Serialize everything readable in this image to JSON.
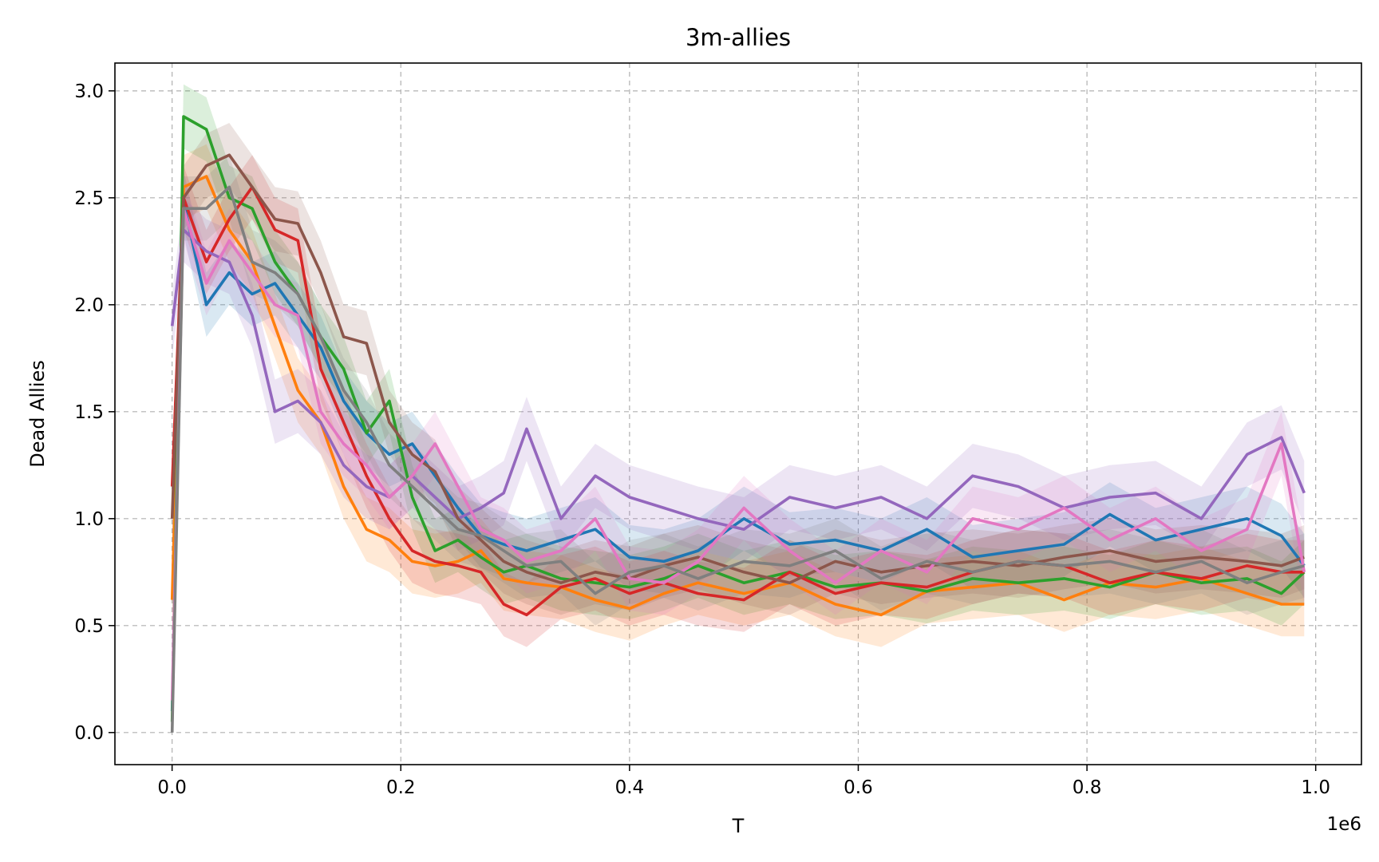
{
  "chart_data": {
    "type": "line",
    "title": "3m-allies",
    "xlabel": "T",
    "ylabel": "Dead Allies",
    "x_offset_text": "1e6",
    "xlim": [
      -0.05,
      1.04
    ],
    "ylim": [
      -0.15,
      3.13
    ],
    "xticks": [
      0.0,
      0.2,
      0.4,
      0.6,
      0.8,
      1.0
    ],
    "xtick_labels": [
      "0.0",
      "0.2",
      "0.4",
      "0.6",
      "0.8",
      "1.0"
    ],
    "yticks": [
      0.0,
      0.5,
      1.0,
      1.5,
      2.0,
      2.5,
      3.0
    ],
    "ytick_labels": [
      "0.0",
      "0.5",
      "1.0",
      "1.5",
      "2.0",
      "2.5",
      "3.0"
    ],
    "grid": true,
    "legend": "none",
    "shaded_band": "approximately ±0.15 around each line",
    "x": [
      0.0,
      0.01,
      0.03,
      0.05,
      0.07,
      0.09,
      0.11,
      0.13,
      0.15,
      0.17,
      0.19,
      0.21,
      0.23,
      0.25,
      0.27,
      0.29,
      0.31,
      0.34,
      0.37,
      0.4,
      0.43,
      0.46,
      0.5,
      0.54,
      0.58,
      0.62,
      0.66,
      0.7,
      0.74,
      0.78,
      0.82,
      0.86,
      0.9,
      0.94,
      0.97,
      0.99
    ],
    "series": [
      {
        "color": "#1f77b4",
        "values": [
          0.1,
          2.48,
          2.0,
          2.15,
          2.05,
          2.1,
          1.95,
          1.8,
          1.55,
          1.4,
          1.3,
          1.35,
          1.2,
          1.05,
          0.92,
          0.88,
          0.85,
          0.9,
          0.95,
          0.82,
          0.8,
          0.85,
          1.0,
          0.88,
          0.9,
          0.85,
          0.95,
          0.82,
          0.85,
          0.88,
          1.02,
          0.9,
          0.95,
          1.0,
          0.92,
          0.78
        ]
      },
      {
        "color": "#ff7f0e",
        "values": [
          0.62,
          2.55,
          2.6,
          2.35,
          2.2,
          1.9,
          1.6,
          1.45,
          1.15,
          0.95,
          0.9,
          0.8,
          0.78,
          0.8,
          0.85,
          0.72,
          0.7,
          0.68,
          0.62,
          0.58,
          0.65,
          0.7,
          0.65,
          0.7,
          0.6,
          0.55,
          0.66,
          0.68,
          0.7,
          0.62,
          0.7,
          0.68,
          0.72,
          0.65,
          0.6,
          0.6
        ]
      },
      {
        "color": "#2ca02c",
        "values": [
          0.05,
          2.88,
          2.82,
          2.5,
          2.45,
          2.2,
          2.05,
          1.85,
          1.7,
          1.4,
          1.55,
          1.1,
          0.85,
          0.9,
          0.82,
          0.75,
          0.78,
          0.72,
          0.7,
          0.68,
          0.72,
          0.78,
          0.7,
          0.75,
          0.68,
          0.7,
          0.66,
          0.72,
          0.7,
          0.72,
          0.68,
          0.75,
          0.7,
          0.72,
          0.65,
          0.75
        ]
      },
      {
        "color": "#d62728",
        "values": [
          1.15,
          2.5,
          2.2,
          2.4,
          2.55,
          2.35,
          2.3,
          1.7,
          1.45,
          1.2,
          1.0,
          0.85,
          0.8,
          0.78,
          0.75,
          0.6,
          0.55,
          0.68,
          0.72,
          0.65,
          0.7,
          0.65,
          0.62,
          0.75,
          0.65,
          0.7,
          0.68,
          0.75,
          0.8,
          0.78,
          0.7,
          0.75,
          0.72,
          0.78,
          0.75,
          0.75
        ]
      },
      {
        "color": "#9467bd",
        "values": [
          1.9,
          2.35,
          2.25,
          2.2,
          1.95,
          1.5,
          1.55,
          1.45,
          1.25,
          1.15,
          1.1,
          1.2,
          1.1,
          1.0,
          1.05,
          1.12,
          1.42,
          1.0,
          1.2,
          1.1,
          1.05,
          1.0,
          0.95,
          1.1,
          1.05,
          1.1,
          1.0,
          1.2,
          1.15,
          1.05,
          1.1,
          1.12,
          1.0,
          1.3,
          1.38,
          1.12
        ]
      },
      {
        "color": "#8c564b",
        "values": [
          1.0,
          2.5,
          2.65,
          2.7,
          2.55,
          2.4,
          2.38,
          2.15,
          1.85,
          1.82,
          1.45,
          1.3,
          1.22,
          1.0,
          0.9,
          0.8,
          0.75,
          0.7,
          0.75,
          0.72,
          0.78,
          0.82,
          0.75,
          0.7,
          0.8,
          0.75,
          0.78,
          0.8,
          0.78,
          0.82,
          0.85,
          0.8,
          0.82,
          0.8,
          0.78,
          0.82
        ]
      },
      {
        "color": "#e377c2",
        "values": [
          0.15,
          2.45,
          2.1,
          2.3,
          2.15,
          2.0,
          1.95,
          1.5,
          1.35,
          1.25,
          1.1,
          1.2,
          1.35,
          1.15,
          0.95,
          0.9,
          0.8,
          0.85,
          1.0,
          0.72,
          0.7,
          0.8,
          1.05,
          0.85,
          0.7,
          0.85,
          0.75,
          1.0,
          0.95,
          1.05,
          0.9,
          1.0,
          0.85,
          0.95,
          1.35,
          0.75
        ]
      },
      {
        "color": "#7f7f7f",
        "values": [
          0.0,
          2.45,
          2.45,
          2.55,
          2.2,
          2.15,
          2.05,
          1.85,
          1.6,
          1.45,
          1.25,
          1.15,
          1.05,
          0.95,
          0.92,
          0.85,
          0.78,
          0.8,
          0.65,
          0.75,
          0.78,
          0.72,
          0.8,
          0.78,
          0.85,
          0.72,
          0.8,
          0.75,
          0.8,
          0.78,
          0.8,
          0.75,
          0.8,
          0.7,
          0.75,
          0.78
        ]
      }
    ]
  }
}
